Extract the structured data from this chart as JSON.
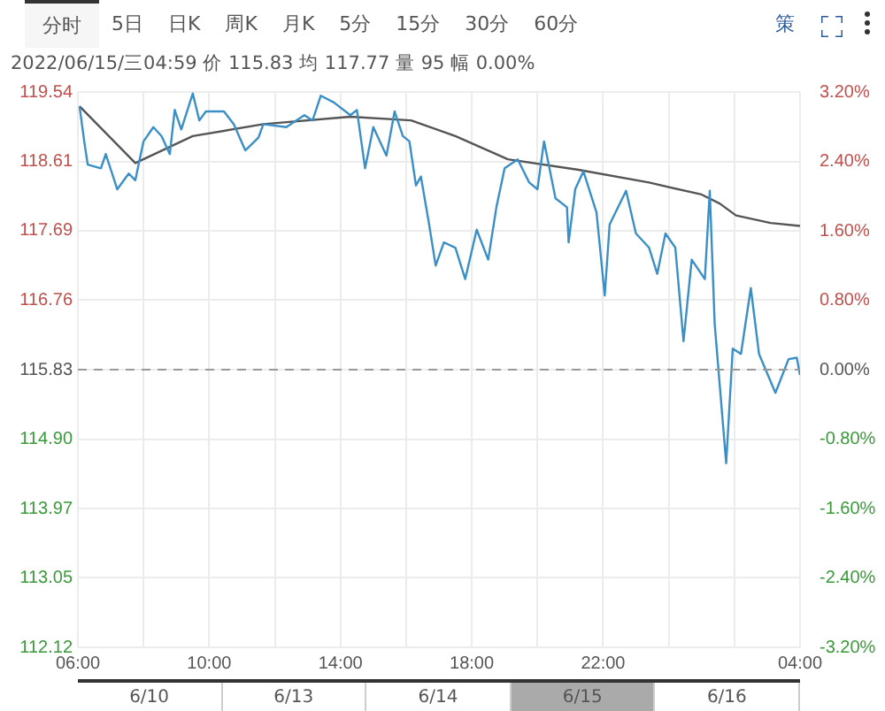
{
  "chart_data": {
    "type": "line",
    "title": "2022/06/15/三04:59  价 115.83  均 117.77  量 95  幅 0.00%",
    "annotations": [
      "分时",
      "5日",
      "日K",
      "周K",
      "月K",
      "5分",
      "15分",
      "30分",
      "60分",
      "策",
      "6/10",
      "6/13",
      "6/14",
      "6/15",
      "6/16"
    ],
    "series": [
      {
        "color": "#3a8fc7",
        "x": [
          "2022-06-14T06:03",
          "2022-06-14T06:12",
          "2022-06-14T06:18",
          "2022-06-14T06:42",
          "2022-06-14T06:51",
          "2022-06-14T07:12",
          "2022-06-14T07:33",
          "2022-06-14T07:45",
          "2022-06-14T08:00",
          "2022-06-14T08:18",
          "2022-06-14T08:33",
          "2022-06-14T08:48",
          "2022-06-14T08:57",
          "2022-06-14T09:09",
          "2022-06-14T09:30",
          "2022-06-14T09:42",
          "2022-06-14T09:54",
          "2022-06-14T10:27",
          "2022-06-14T10:45",
          "2022-06-14T11:06",
          "2022-06-14T11:30",
          "2022-06-14T11:39",
          "2022-06-14T12:21",
          "2022-06-14T12:54",
          "2022-06-14T13:09",
          "2022-06-14T13:24",
          "2022-06-14T13:48",
          "2022-06-14T14:18",
          "2022-06-14T14:30",
          "2022-06-14T14:45",
          "2022-06-14T15:00",
          "2022-06-14T15:24",
          "2022-06-14T15:39",
          "2022-06-14T15:54",
          "2022-06-14T16:06",
          "2022-06-14T16:18",
          "2022-06-14T16:27",
          "2022-06-14T16:42",
          "2022-06-14T16:54",
          "2022-06-14T17:09",
          "2022-06-14T17:30",
          "2022-06-14T17:48",
          "2022-06-14T18:09",
          "2022-06-14T18:30",
          "2022-06-14T18:45",
          "2022-06-14T19:00",
          "2022-06-14T19:24",
          "2022-06-14T19:45",
          "2022-06-14T20:00",
          "2022-06-14T20:12",
          "2022-06-14T20:33",
          "2022-06-14T20:54",
          "2022-06-14T20:57",
          "2022-06-14T21:09",
          "2022-06-14T21:24",
          "2022-06-14T21:48",
          "2022-06-14T22:03",
          "2022-06-14T22:12",
          "2022-06-14T22:42",
          "2022-06-14T23:00",
          "2022-06-14T23:24",
          "2022-06-14T23:39",
          "2022-06-14T23:54",
          "2022-06-15T00:12",
          "2022-06-15T00:27",
          "2022-06-15T00:42",
          "2022-06-15T01:06",
          "2022-06-15T01:15",
          "2022-06-15T01:24",
          "2022-06-15T01:45",
          "2022-06-15T01:57",
          "2022-06-15T02:12",
          "2022-06-15T02:30",
          "2022-06-15T02:45",
          "2022-06-15T03:15",
          "2022-06-15T03:39",
          "2022-06-15T03:54",
          "2022-06-15T04:00"
        ],
        "values": [
          119.35,
          118.86,
          118.57,
          118.52,
          118.71,
          118.24,
          118.45,
          118.36,
          118.88,
          119.07,
          118.95,
          118.71,
          119.3,
          119.04,
          119.52,
          119.16,
          119.28,
          119.28,
          119.11,
          118.76,
          118.93,
          119.11,
          119.07,
          119.23,
          119.16,
          119.49,
          119.4,
          119.23,
          119.3,
          118.52,
          119.07,
          118.69,
          119.28,
          118.95,
          118.88,
          118.29,
          118.41,
          117.77,
          117.22,
          117.53,
          117.46,
          117.04,
          117.7,
          117.3,
          118.0,
          118.52,
          118.64,
          118.33,
          118.24,
          118.88,
          118.12,
          118.0,
          117.53,
          118.24,
          118.48,
          117.93,
          116.82,
          117.77,
          118.22,
          117.65,
          117.46,
          117.11,
          117.65,
          117.46,
          116.21,
          117.3,
          117.04,
          118.22,
          116.44,
          114.58,
          116.11,
          116.04,
          116.92,
          116.04,
          115.52,
          115.97,
          115.99,
          115.76
        ]
      },
      {
        "color": "#555555",
        "x": [
          "2022-06-14T06:03",
          "2022-06-14T07:45",
          "2022-06-14T09:30",
          "2022-06-14T11:39",
          "2022-06-14T14:18",
          "2022-06-14T16:09",
          "2022-06-14T17:30",
          "2022-06-14T19:06",
          "2022-06-14T21:15",
          "2022-06-14T23:24",
          "2022-06-15T01:00",
          "2022-06-15T01:33",
          "2022-06-15T02:03",
          "2022-06-15T03:06",
          "2022-06-15T04:00"
        ],
        "values": [
          119.35,
          118.59,
          118.95,
          119.11,
          119.21,
          119.16,
          118.95,
          118.64,
          118.5,
          118.33,
          118.17,
          118.05,
          117.89,
          117.79,
          117.75
        ]
      }
    ],
    "xlim": [
      "2022-06-14T06:00",
      "2022-06-15T04:00"
    ],
    "xticks": [
      {
        "value": "2022-06-14T06:00",
        "label": "06:00"
      },
      {
        "value": "2022-06-14T08:00",
        "label": null
      },
      {
        "value": "2022-06-14T10:00",
        "label": "10:00"
      },
      {
        "value": "2022-06-14T12:00",
        "label": null
      },
      {
        "value": "2022-06-14T14:00",
        "label": "14:00"
      },
      {
        "value": "2022-06-14T16:00",
        "label": null
      },
      {
        "value": "2022-06-14T18:00",
        "label": "18:00"
      },
      {
        "value": "2022-06-14T20:00",
        "label": null
      },
      {
        "value": "2022-06-14T22:00",
        "label": "22:00"
      },
      {
        "value": "2022-06-15T00:00",
        "label": null
      },
      {
        "value": "2022-06-15T02:00",
        "label": null
      },
      {
        "value": "2022-06-15T04:00",
        "label": "04:00"
      }
    ],
    "ylim": [
      112.12,
      119.54
    ],
    "yticks": [
      112.12,
      113.05,
      113.97,
      {
        "value": 114.9,
        "label": "114.90"
      },
      115.83,
      116.76,
      117.69,
      118.61,
      119.54
    ],
    "y2lim": [
      -3.2,
      3.2
    ],
    "y2ticks": [
      {
        "value": -3.2,
        "label": "-3.20%"
      },
      {
        "value": -2.4,
        "label": "-2.40%"
      },
      {
        "value": -1.6,
        "label": "-1.60%"
      },
      {
        "value": -0.8,
        "label": "-0.80%"
      },
      {
        "value": 0,
        "label": "0.00%"
      },
      {
        "value": 0.8,
        "label": "0.80%"
      },
      {
        "value": 1.6,
        "label": "1.60%"
      },
      {
        "value": 2.4,
        "label": "2.40%"
      },
      {
        "value": 3.2,
        "label": "3.20%"
      }
    ],
    "ref_lines": [
      {
        "axis": "y",
        "value": 115.83,
        "color": "#999999",
        "line_style": "dashed"
      }
    ],
    "grid": true,
    "legend": false,
    "marker": "none",
    "line_style": "solid"
  }
}
